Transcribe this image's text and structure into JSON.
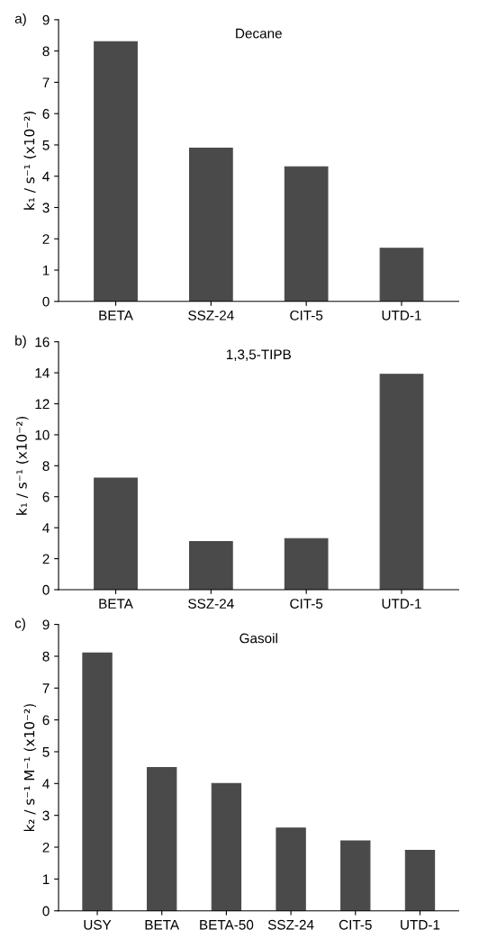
{
  "chart_data": [
    {
      "type": "bar",
      "title": "Decane",
      "ylabel": "k₁ / s⁻¹ (x10⁻²)",
      "annotations": [
        "a)"
      ],
      "categories": [
        "BETA",
        "SSZ-24",
        "CIT-5",
        "UTD-1"
      ],
      "values": [
        8.3,
        4.9,
        4.3,
        1.7
      ],
      "color": "#4a4a4a",
      "ylim": [
        0,
        9
      ],
      "yticks": [
        0,
        1,
        2,
        3,
        4,
        5,
        6,
        7,
        8,
        9
      ],
      "grid": false,
      "legend": false
    },
    {
      "type": "bar",
      "title": "1,3,5-TIPB",
      "ylabel": "k₁ / s⁻¹ (x10⁻²)",
      "annotations": [
        "b)"
      ],
      "categories": [
        "BETA",
        "SSZ-24",
        "CIT-5",
        "UTD-1"
      ],
      "values": [
        7.2,
        3.1,
        3.3,
        13.9
      ],
      "color": "#4a4a4a",
      "ylim": [
        0,
        16
      ],
      "yticks": [
        0,
        2,
        4,
        6,
        8,
        10,
        12,
        14,
        16
      ],
      "grid": false,
      "legend": false
    },
    {
      "type": "bar",
      "title": "Gasoil",
      "ylabel": "k₂ / s⁻¹ M⁻¹ (x10⁻²)",
      "annotations": [
        "c)"
      ],
      "categories": [
        "USY",
        "BETA",
        "BETA-50",
        "SSZ-24",
        "CIT-5",
        "UTD-1"
      ],
      "values": [
        8.1,
        4.5,
        4.0,
        2.6,
        2.2,
        1.9
      ],
      "color": "#4a4a4a",
      "ylim": [
        0,
        9
      ],
      "yticks": [
        0,
        1,
        2,
        3,
        4,
        5,
        6,
        7,
        8,
        9
      ],
      "grid": false,
      "legend": false
    }
  ]
}
